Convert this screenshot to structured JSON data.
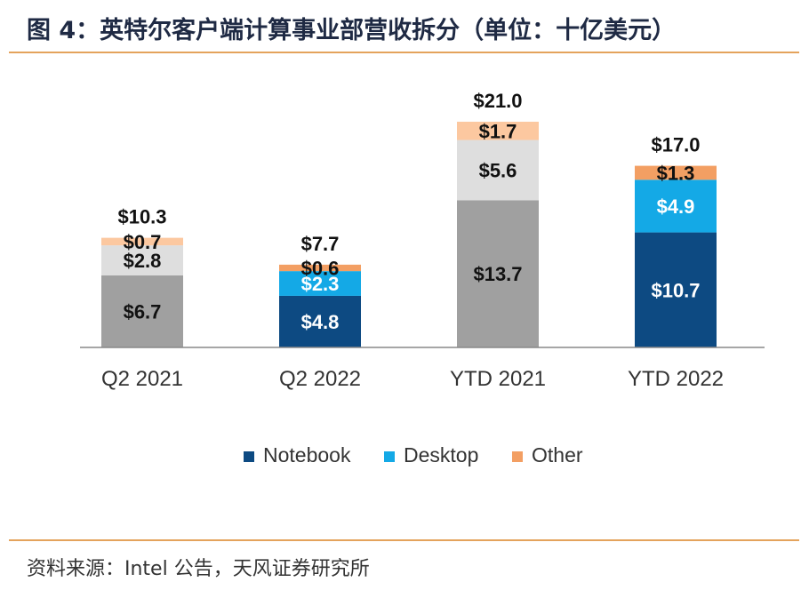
{
  "header": {
    "title": "图 4：英特尔客户端计算事业部营收拆分（单位：十亿美元）"
  },
  "footer": {
    "source": "资料来源：Intel 公告，天风证券研究所"
  },
  "colors": {
    "notebook": "#0d4a82",
    "desktop": "#14a9e6",
    "other": "#f39f63",
    "notebook_gray": "#a0a0a0",
    "desktop_gray": "#dedede",
    "other_gray": "#fcc8a0",
    "axis": "#888888",
    "rule": "#e4a35c"
  },
  "chart_data": {
    "type": "bar",
    "stacked": true,
    "title": "",
    "xlabel": "",
    "ylabel": "",
    "ylim": [
      0,
      21
    ],
    "categories": [
      "Q2 2021",
      "Q2 2022",
      "YTD 2021",
      "YTD 2022"
    ],
    "series": [
      {
        "name": "Notebook",
        "values": [
          6.7,
          4.8,
          13.7,
          10.7
        ]
      },
      {
        "name": "Desktop",
        "values": [
          2.8,
          2.3,
          5.6,
          4.9
        ]
      },
      {
        "name": "Other",
        "values": [
          0.7,
          0.6,
          1.7,
          1.3
        ]
      }
    ],
    "segment_labels": [
      [
        "$6.7",
        "$2.8",
        "$0.7"
      ],
      [
        "$4.8",
        "$2.3",
        "$0.6"
      ],
      [
        "$13.7",
        "$5.6",
        "$1.7"
      ],
      [
        "$10.7",
        "$4.9",
        "$1.3"
      ]
    ],
    "totals": [
      10.3,
      7.7,
      21.0,
      17.0
    ],
    "total_labels": [
      "$10.3",
      "$7.7",
      "$21.0",
      "$17.0"
    ],
    "grayed_categories": [
      "Q2 2021",
      "YTD 2021"
    ],
    "legend": {
      "position": "bottom",
      "entries": [
        "Notebook",
        "Desktop",
        "Other"
      ]
    },
    "grid": false
  }
}
